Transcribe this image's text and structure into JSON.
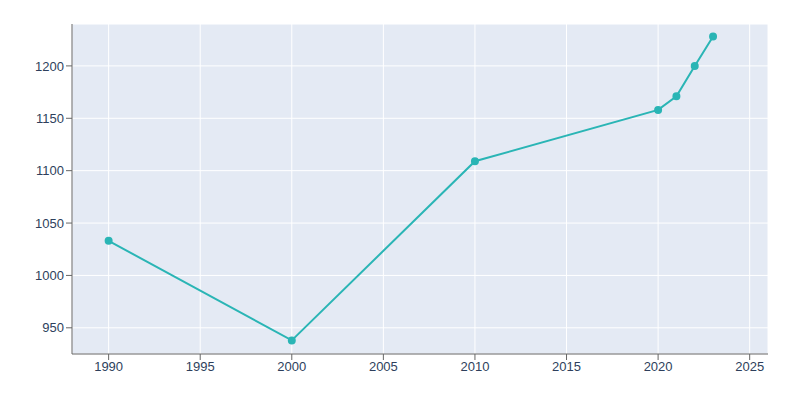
{
  "chart_data": {
    "type": "line",
    "x": [
      1990,
      2000,
      2010,
      2020,
      2021,
      2022,
      2023
    ],
    "values": [
      1033,
      938,
      1109,
      1158,
      1171,
      1200,
      1228
    ],
    "color": "#2ab5b5",
    "marker": "circle",
    "xlim": [
      1988,
      2026
    ],
    "ylim": [
      925,
      1240
    ],
    "xticks": [
      1990,
      1995,
      2000,
      2005,
      2010,
      2015,
      2020,
      2025
    ],
    "yticks": [
      950,
      1000,
      1050,
      1100,
      1150,
      1200
    ],
    "grid": true
  }
}
